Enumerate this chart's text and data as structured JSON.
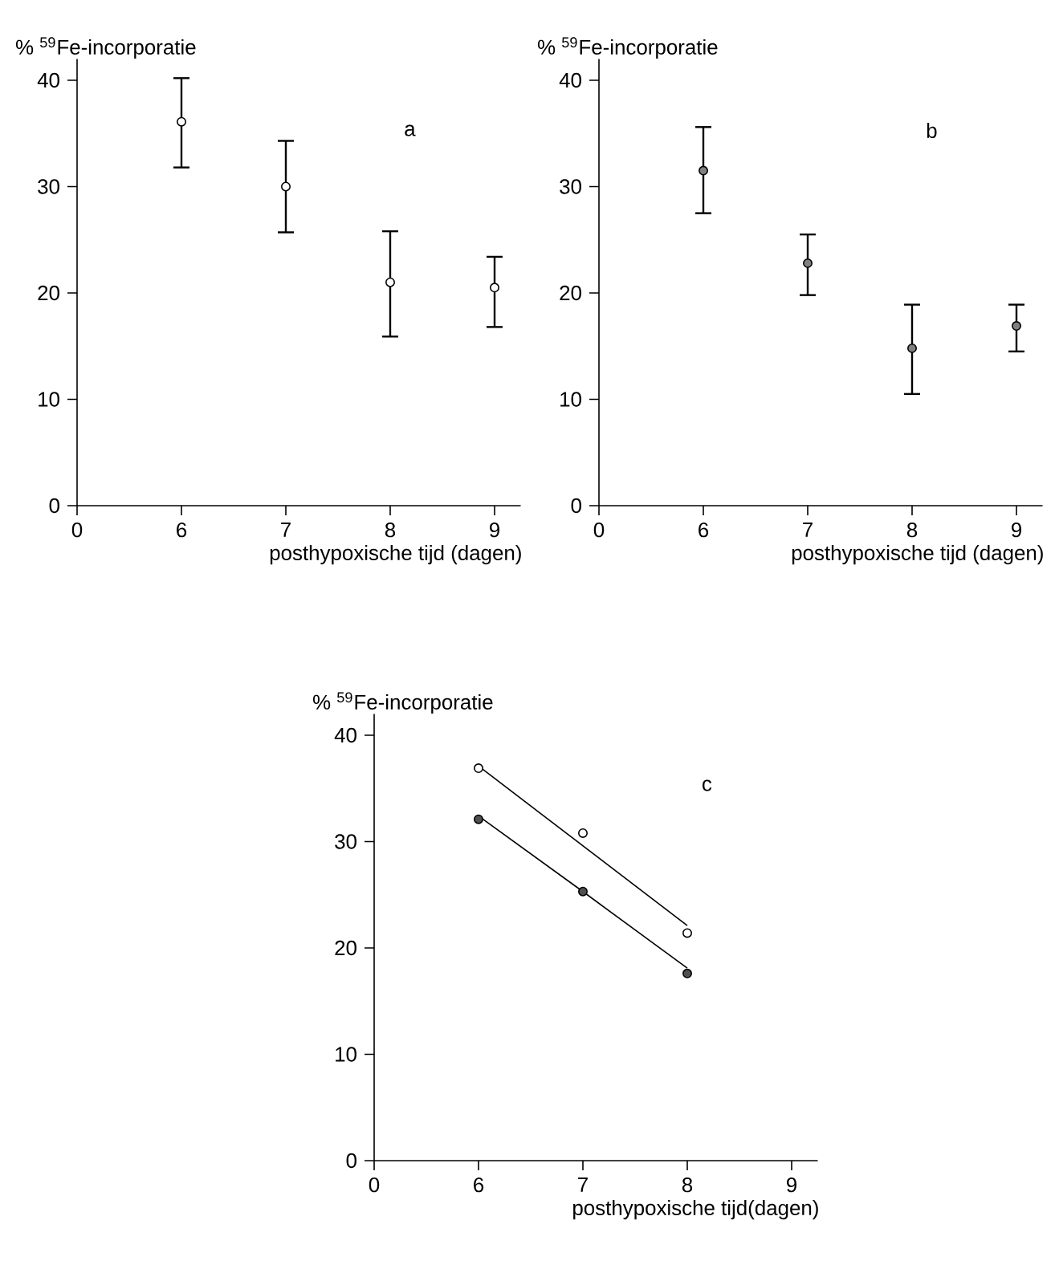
{
  "chart_data": [
    {
      "type": "scatter",
      "title": "a",
      "xlabel": "posthypoxische tijd (dagen)",
      "ylabel": "% $^{59}$Fe-incorporatie",
      "categories": [
        "0",
        "6",
        "7",
        "8",
        "9"
      ],
      "ylim": [
        0,
        42
      ],
      "yticks": [
        0,
        10,
        20,
        30,
        40
      ],
      "marker": "circle",
      "series": [
        {
          "color": "#ffffff",
          "values": [
            null,
            36.1,
            30.0,
            21.0,
            20.5
          ],
          "errors": [
            null,
            [
              31.8,
              40.2
            ],
            [
              25.7,
              34.3
            ],
            [
              15.9,
              25.8
            ],
            [
              16.8,
              23.4
            ]
          ]
        }
      ]
    },
    {
      "type": "scatter",
      "title": "b",
      "xlabel": "posthypoxische tijd (dagen)",
      "ylabel": "% $^{59}$Fe-incorporatie",
      "categories": [
        "0",
        "6",
        "7",
        "8",
        "9"
      ],
      "ylim": [
        0,
        42
      ],
      "yticks": [
        0,
        10,
        20,
        30,
        40
      ],
      "marker": "circle",
      "series": [
        {
          "color": "#808080",
          "values": [
            null,
            31.5,
            22.8,
            14.8,
            16.9
          ],
          "errors": [
            null,
            [
              27.5,
              35.6
            ],
            [
              19.8,
              25.5
            ],
            [
              10.5,
              18.9
            ],
            [
              14.5,
              18.9
            ]
          ]
        }
      ]
    },
    {
      "type": "scatter",
      "title": "c",
      "xlabel": "posthypoxische tijd(dagen)",
      "ylabel": "% $^{59}$Fe-incorporatie",
      "categories": [
        "0",
        "6",
        "7",
        "8",
        "9"
      ],
      "ylim": [
        0,
        42
      ],
      "yticks": [
        0,
        10,
        20,
        30,
        40
      ],
      "marker": "circle",
      "series": [
        {
          "type": "line",
          "marker": "none",
          "color": "#000000",
          "values": [
            null,
            37.1,
            29.6,
            22.1,
            null
          ]
        },
        {
          "type": "line",
          "marker": "none",
          "color": "#000000",
          "values": [
            null,
            32.4,
            25.3,
            18.1,
            null
          ]
        },
        {
          "color": "#ffffff",
          "values": [
            null,
            36.9,
            30.8,
            21.4,
            null
          ]
        },
        {
          "color": "#505050",
          "values": [
            null,
            32.1,
            25.3,
            17.6,
            null
          ]
        }
      ]
    }
  ]
}
